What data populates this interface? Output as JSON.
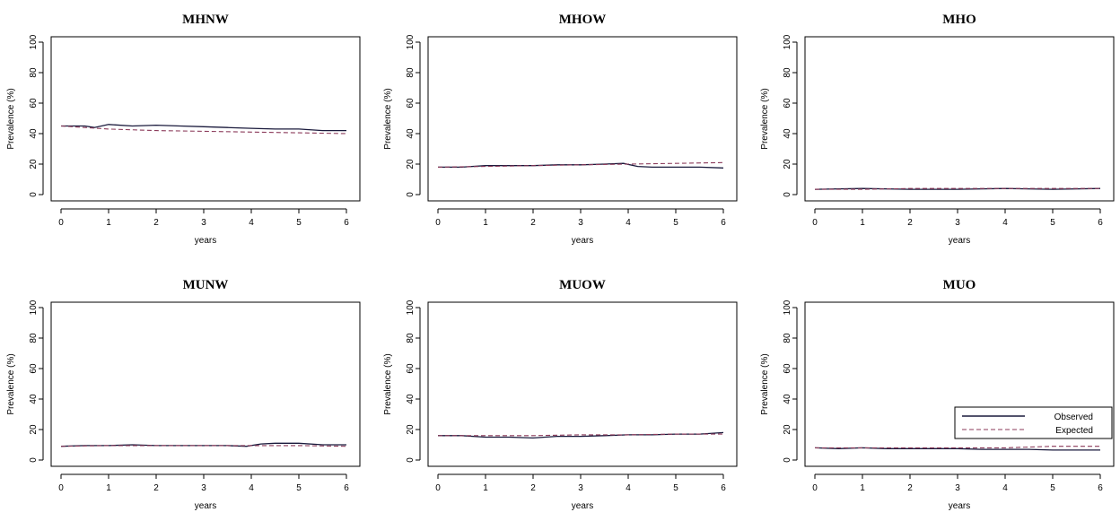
{
  "figure": {
    "colors": {
      "observed": "#1a1a3c",
      "expected": "#8b3a5a",
      "axis": "#000000"
    },
    "legend": {
      "placement": "bottom-right of panel MUO",
      "observed_label": "Observed",
      "expected_label": "Expected"
    }
  },
  "chart_data": [
    {
      "type": "line",
      "title": "MHNW",
      "xlabel": "years",
      "ylabel": "Prevalence (%)",
      "xlim": [
        0,
        6
      ],
      "ylim": [
        0,
        100
      ],
      "xticks": [
        "0",
        "1",
        "2",
        "3",
        "4",
        "5",
        "6"
      ],
      "yticks": [
        "0",
        "20",
        "40",
        "60",
        "80",
        "100"
      ],
      "series": [
        {
          "name": "Observed",
          "x": [
            0,
            0.5,
            0.7,
            1,
            1.5,
            2,
            2.5,
            3,
            3.5,
            4,
            4.5,
            5,
            5.5,
            6
          ],
          "y": [
            45,
            45,
            44,
            46,
            45,
            45.5,
            45,
            44.5,
            44,
            43.5,
            43,
            43,
            42,
            42
          ]
        },
        {
          "name": "Expected",
          "x": [
            0,
            1,
            2,
            3,
            4,
            5,
            6
          ],
          "y": [
            45,
            43,
            42,
            41.5,
            41,
            40.5,
            40
          ]
        }
      ]
    },
    {
      "type": "line",
      "title": "MHOW",
      "xlabel": "years",
      "ylabel": "Prevalence (%)",
      "xlim": [
        0,
        6
      ],
      "ylim": [
        0,
        100
      ],
      "xticks": [
        "0",
        "1",
        "2",
        "3",
        "4",
        "5",
        "6"
      ],
      "yticks": [
        "0",
        "20",
        "40",
        "60",
        "80",
        "100"
      ],
      "series": [
        {
          "name": "Observed",
          "x": [
            0,
            0.5,
            1,
            1.5,
            2,
            2.5,
            3,
            3.5,
            3.9,
            4.2,
            4.5,
            5,
            5.5,
            6
          ],
          "y": [
            18,
            18,
            19,
            19,
            19,
            19.5,
            19.5,
            20,
            20.5,
            18.5,
            18,
            18,
            18,
            17.5
          ]
        },
        {
          "name": "Expected",
          "x": [
            0,
            1,
            2,
            3,
            4,
            5,
            6
          ],
          "y": [
            18,
            18.5,
            19,
            19.5,
            20,
            20.5,
            21
          ]
        }
      ]
    },
    {
      "type": "line",
      "title": "MHO",
      "xlabel": "years",
      "ylabel": "Prevalence (%)",
      "xlim": [
        0,
        6
      ],
      "ylim": [
        0,
        100
      ],
      "xticks": [
        "0",
        "1",
        "2",
        "3",
        "4",
        "5",
        "6"
      ],
      "yticks": [
        "0",
        "20",
        "40",
        "60",
        "80",
        "100"
      ],
      "series": [
        {
          "name": "Observed",
          "x": [
            0,
            1,
            2,
            3,
            4,
            5,
            6
          ],
          "y": [
            3.5,
            4,
            3.5,
            3.5,
            4,
            3.5,
            4
          ]
        },
        {
          "name": "Expected",
          "x": [
            0,
            1,
            2,
            3,
            4,
            5,
            6
          ],
          "y": [
            3.5,
            3.5,
            4,
            4,
            4,
            4,
            4
          ]
        }
      ]
    },
    {
      "type": "line",
      "title": "MUNW",
      "xlabel": "years",
      "ylabel": "Prevalence (%)",
      "xlim": [
        0,
        6
      ],
      "ylim": [
        0,
        100
      ],
      "xticks": [
        "0",
        "1",
        "2",
        "3",
        "4",
        "5",
        "6"
      ],
      "yticks": [
        "0",
        "20",
        "40",
        "60",
        "80",
        "100"
      ],
      "series": [
        {
          "name": "Observed",
          "x": [
            0,
            0.5,
            1,
            1.5,
            2,
            2.5,
            3,
            3.5,
            3.9,
            4.2,
            4.5,
            5,
            5.5,
            6
          ],
          "y": [
            9,
            9.5,
            9.5,
            10,
            9.5,
            9.5,
            9.5,
            9.5,
            9,
            10.5,
            11,
            11,
            10,
            10
          ]
        },
        {
          "name": "Expected",
          "x": [
            0,
            1,
            2,
            3,
            4,
            5,
            6
          ],
          "y": [
            9,
            9.5,
            9.5,
            9.5,
            9.5,
            9.5,
            9
          ]
        }
      ]
    },
    {
      "type": "line",
      "title": "MUOW",
      "xlabel": "years",
      "ylabel": "Prevalence (%)",
      "xlim": [
        0,
        6
      ],
      "ylim": [
        0,
        100
      ],
      "xticks": [
        "0",
        "1",
        "2",
        "3",
        "4",
        "5",
        "6"
      ],
      "yticks": [
        "0",
        "20",
        "40",
        "60",
        "80",
        "100"
      ],
      "series": [
        {
          "name": "Observed",
          "x": [
            0,
            0.5,
            1,
            1.5,
            2,
            2.5,
            3,
            3.5,
            4,
            4.5,
            5,
            5.5,
            6
          ],
          "y": [
            16,
            16,
            15,
            15,
            14.5,
            15.5,
            15.5,
            16,
            16.5,
            16.5,
            17,
            17,
            18
          ]
        },
        {
          "name": "Expected",
          "x": [
            0,
            1,
            2,
            3,
            4,
            5,
            6
          ],
          "y": [
            16,
            16,
            16,
            16.5,
            16.5,
            17,
            17
          ]
        }
      ]
    },
    {
      "type": "line",
      "title": "MUO",
      "xlabel": "years",
      "ylabel": "Prevalence (%)",
      "xlim": [
        0,
        6
      ],
      "ylim": [
        0,
        100
      ],
      "xticks": [
        "0",
        "1",
        "2",
        "3",
        "4",
        "5",
        "6"
      ],
      "yticks": [
        "0",
        "20",
        "40",
        "60",
        "80",
        "100"
      ],
      "series": [
        {
          "name": "Observed",
          "x": [
            0,
            0.5,
            1,
            1.5,
            2,
            2.5,
            3,
            3.5,
            4,
            4.5,
            5,
            5.5,
            6
          ],
          "y": [
            8,
            7.5,
            8,
            7.5,
            7.5,
            7.5,
            7.5,
            7,
            7,
            7,
            6.5,
            6.5,
            6.5
          ]
        },
        {
          "name": "Expected",
          "x": [
            0,
            1,
            2,
            3,
            4,
            5,
            6
          ],
          "y": [
            8,
            8,
            8,
            8,
            8,
            9,
            9
          ]
        }
      ]
    }
  ]
}
